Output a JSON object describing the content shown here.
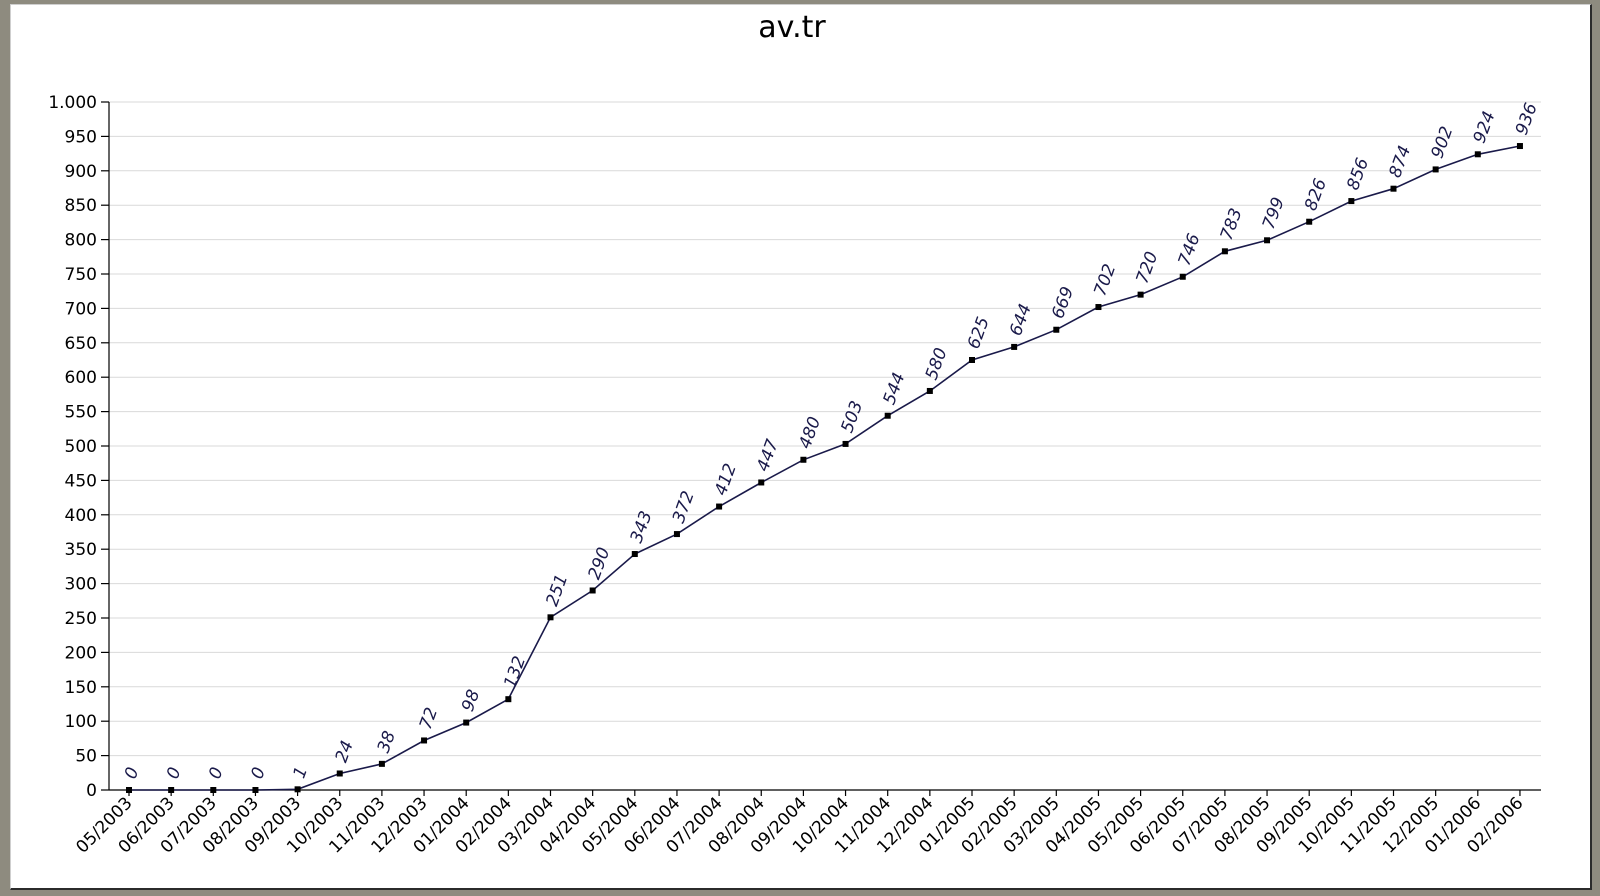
{
  "chart_data": {
    "type": "line",
    "title": "av.tr",
    "xlabel": "",
    "ylabel": "",
    "ylim": [
      0,
      1000
    ],
    "yticks": [
      0,
      50,
      100,
      150,
      200,
      250,
      300,
      350,
      400,
      450,
      500,
      550,
      600,
      650,
      700,
      750,
      800,
      850,
      900,
      950,
      1000
    ],
    "ytick_labels": [
      "0",
      "50",
      "100",
      "150",
      "200",
      "250",
      "300",
      "350",
      "400",
      "450",
      "500",
      "550",
      "600",
      "650",
      "700",
      "750",
      "800",
      "850",
      "900",
      "950",
      "1.000"
    ],
    "grid": true,
    "legend": "none",
    "categories": [
      "05/2003",
      "06/2003",
      "07/2003",
      "08/2003",
      "09/2003",
      "10/2003",
      "11/2003",
      "12/2003",
      "01/2004",
      "02/2004",
      "03/2004",
      "04/2004",
      "05/2004",
      "06/2004",
      "07/2004",
      "08/2004",
      "09/2004",
      "10/2004",
      "11/2004",
      "12/2004",
      "01/2005",
      "02/2005",
      "03/2005",
      "04/2005",
      "05/2005",
      "06/2005",
      "07/2005",
      "08/2005",
      "09/2005",
      "10/2005",
      "11/2005",
      "12/2005",
      "01/2006",
      "02/2006"
    ],
    "series": [
      {
        "values": [
          0,
          0,
          0,
          0,
          1,
          24,
          38,
          72,
          98,
          132,
          251,
          290,
          343,
          372,
          412,
          447,
          480,
          503,
          544,
          580,
          625,
          644,
          669,
          702,
          720,
          746,
          783,
          799,
          826,
          856,
          874,
          902,
          924,
          936
        ],
        "labels": [
          "0",
          "0",
          "0",
          "0",
          "1",
          "24",
          "38",
          "72",
          "98",
          "132",
          "251",
          "290",
          "343",
          "372",
          "412",
          "447",
          "480",
          "503",
          "544",
          "580",
          "625",
          "644",
          "669",
          "702",
          "720",
          "746",
          "783",
          "799",
          "826",
          "856",
          "874",
          "902",
          "924",
          "936"
        ]
      }
    ],
    "colors": {
      "line": "#1a1a4a",
      "marker": "#000000",
      "grid": "#d9d9d9",
      "axis": "#000000"
    }
  }
}
